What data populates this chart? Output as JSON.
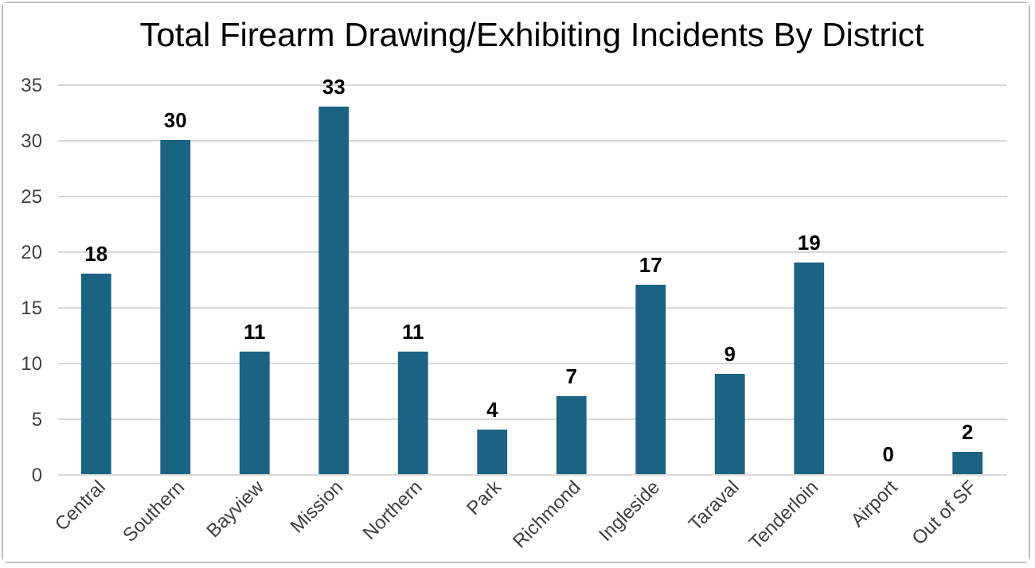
{
  "chart_data": {
    "type": "bar",
    "title": "Total Firearm Drawing/Exhibiting Incidents By District",
    "categories": [
      "Central",
      "Southern",
      "Bayview",
      "Mission",
      "Northern",
      "Park",
      "Richmond",
      "Ingleside",
      "Taraval",
      "Tenderloin",
      "Airport",
      "Out of SF"
    ],
    "values": [
      18,
      30,
      11,
      33,
      11,
      4,
      7,
      17,
      9,
      19,
      0,
      2
    ],
    "color": "#1b6383",
    "ylim": [
      0,
      35
    ],
    "yticks": [
      0,
      5,
      10,
      15,
      20,
      25,
      30,
      35
    ],
    "grid": "y",
    "data_labels": true
  }
}
